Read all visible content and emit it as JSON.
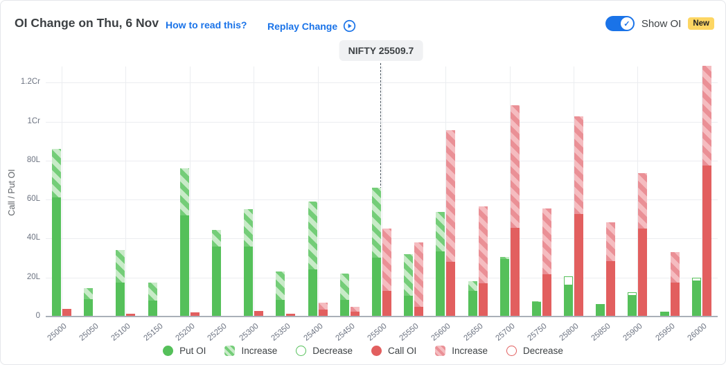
{
  "header": {
    "title": "OI Change on Thu, 6 Nov",
    "how_to_read_label": "How to read this?",
    "replay_label": "Replay Change",
    "show_oi_label": "Show OI",
    "new_badge": "New",
    "toggle_state": "on"
  },
  "colors": {
    "accent_blue": "#1a73e8",
    "put_green": "#55c05a",
    "put_green_light": "#c8ebc8",
    "call_red": "#e25f5f",
    "call_red_light": "#f5bcc0",
    "badge_yellow": "#fdd663",
    "spot_line": "#44505a"
  },
  "chart_data": {
    "type": "bar",
    "title": "OI Change on Thu, 6 Nov",
    "xlabel": "",
    "ylabel": "Call / Put OI",
    "yticks": [
      "0",
      "20L",
      "40L",
      "60L",
      "80L",
      "1Cr",
      "1.2Cr"
    ],
    "ytick_values_lakh": [
      0,
      20,
      40,
      60,
      80,
      100,
      120
    ],
    "ylim_lakh": [
      0,
      130
    ],
    "grid": "on",
    "legend_position": "bottom",
    "spot": {
      "label": "NIFTY 25509.7",
      "value": 25509.7,
      "at_strike": "25500"
    },
    "categories": [
      "25000",
      "25050",
      "25100",
      "25150",
      "25200",
      "25250",
      "25300",
      "25350",
      "25400",
      "25450",
      "25500",
      "25550",
      "25600",
      "25650",
      "25700",
      "25750",
      "25800",
      "25850",
      "25900",
      "25950",
      "26000"
    ],
    "series": [
      {
        "name": "Put OI",
        "color": "green",
        "solid_lakh": [
          61,
          9,
          17.5,
          8,
          52,
          36,
          36,
          8.5,
          24,
          8.5,
          30,
          10.5,
          33.5,
          13,
          29.5,
          7.5,
          16.5,
          6.5,
          11,
          2.5,
          18.5
        ],
        "change_lakh": [
          25,
          5.5,
          16.5,
          9.5,
          24,
          8.5,
          19,
          14.5,
          35,
          13.5,
          36,
          21.5,
          20,
          5,
          1,
          0.5,
          4,
          0,
          1.5,
          0,
          1.5
        ],
        "change_type": [
          "increase",
          "increase",
          "increase",
          "increase",
          "increase",
          "increase",
          "increase",
          "increase",
          "increase",
          "increase",
          "increase",
          "increase",
          "increase",
          "increase",
          "increase",
          "increase",
          "decrease",
          "none",
          "decrease",
          "none",
          "decrease"
        ]
      },
      {
        "name": "Call OI",
        "color": "red",
        "solid_lakh": [
          4,
          0,
          1.5,
          0,
          2,
          0,
          3,
          1.5,
          3.5,
          2.5,
          13,
          5,
          28,
          17,
          45.5,
          21.5,
          52.5,
          28.5,
          45,
          17.5,
          77.5
        ],
        "change_lakh": [
          0,
          0.5,
          0,
          0.5,
          0,
          0.5,
          0,
          0,
          3.5,
          2.5,
          32,
          33,
          67.5,
          39.5,
          63,
          34,
          50,
          20,
          28.5,
          15.5,
          51
        ],
        "change_type": [
          "none",
          "increase",
          "none",
          "increase",
          "none",
          "increase",
          "none",
          "none",
          "increase",
          "increase",
          "increase",
          "increase",
          "increase",
          "increase",
          "increase",
          "increase",
          "increase",
          "increase",
          "increase",
          "increase",
          "increase"
        ]
      }
    ],
    "legend": [
      {
        "label": "Put OI",
        "marker": "solid",
        "color": "green"
      },
      {
        "label": "Increase",
        "marker": "hatch",
        "color": "green"
      },
      {
        "label": "Decrease",
        "marker": "outline",
        "color": "green"
      },
      {
        "label": "Call OI",
        "marker": "solid",
        "color": "red"
      },
      {
        "label": "Increase",
        "marker": "hatch",
        "color": "red"
      },
      {
        "label": "Decrease",
        "marker": "outline",
        "color": "red"
      }
    ]
  }
}
